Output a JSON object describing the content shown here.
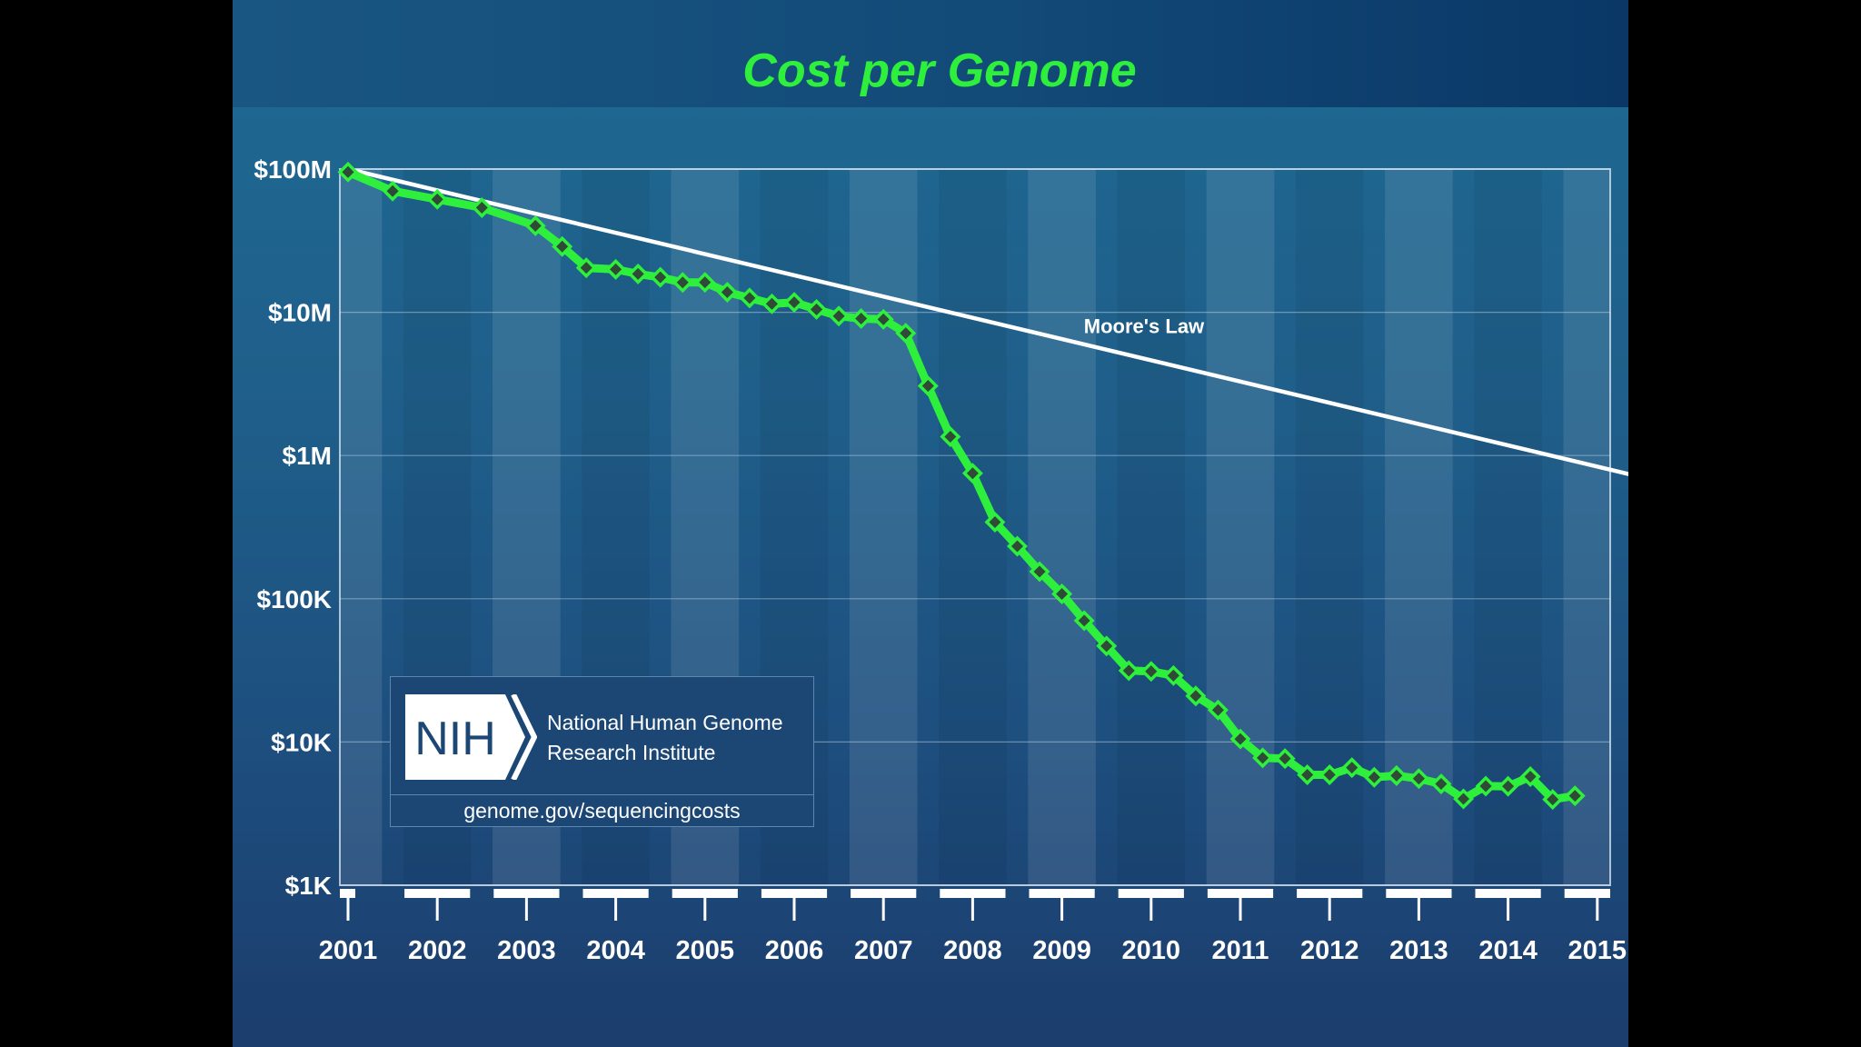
{
  "chart_data": {
    "type": "line",
    "title": "Cost per Genome",
    "xlabel": "",
    "ylabel": "",
    "y_scale": "log",
    "ylim": [
      1000,
      100000000
    ],
    "y_ticks": [
      {
        "value": 100000000,
        "label": "$100M"
      },
      {
        "value": 10000000,
        "label": "$10M"
      },
      {
        "value": 1000000,
        "label": "$1M"
      },
      {
        "value": 100000,
        "label": "$100K"
      },
      {
        "value": 10000,
        "label": "$10K"
      },
      {
        "value": 1000,
        "label": "$1K"
      }
    ],
    "x_ticks": [
      "2001",
      "2002",
      "2003",
      "2004",
      "2005",
      "2006",
      "2007",
      "2008",
      "2009",
      "2010",
      "2011",
      "2012",
      "2013",
      "2014",
      "2015"
    ],
    "grid": true,
    "series": [
      {
        "name": "Cost per Genome",
        "color": "#2ef03c",
        "marker_color": "#2f4a36",
        "points": [
          [
            2001.0,
            95263072
          ],
          [
            2001.5,
            70175437
          ],
          [
            2002.0,
            61448422
          ],
          [
            2002.5,
            53751684
          ],
          [
            2003.1,
            40157554
          ],
          [
            2003.4,
            28780376
          ],
          [
            2003.67,
            20442576
          ],
          [
            2004.0,
            19934346
          ],
          [
            2004.25,
            18519312
          ],
          [
            2004.5,
            17534970
          ],
          [
            2004.75,
            16159699
          ],
          [
            2005.0,
            16180224
          ],
          [
            2005.25,
            13801124
          ],
          [
            2005.5,
            12585659
          ],
          [
            2005.75,
            11455315
          ],
          [
            2006.0,
            11732535
          ],
          [
            2006.25,
            10474556
          ],
          [
            2006.5,
            9408739
          ],
          [
            2006.75,
            9047002
          ],
          [
            2007.0,
            8927342
          ],
          [
            2007.25,
            7147571
          ],
          [
            2007.5,
            3063820
          ],
          [
            2007.75,
            1352982
          ],
          [
            2008.0,
            752080
          ],
          [
            2008.25,
            342502
          ],
          [
            2008.5,
            232735
          ],
          [
            2008.75,
            154714
          ],
          [
            2009.0,
            108065
          ],
          [
            2009.25,
            70333
          ],
          [
            2009.5,
            46774
          ],
          [
            2009.75,
            31512
          ],
          [
            2010.0,
            31125
          ],
          [
            2010.25,
            29092
          ],
          [
            2010.5,
            20963
          ],
          [
            2010.75,
            16712
          ],
          [
            2011.0,
            10497
          ],
          [
            2011.25,
            7743
          ],
          [
            2011.5,
            7666
          ],
          [
            2011.75,
            5902
          ],
          [
            2012.0,
            5901
          ],
          [
            2012.25,
            6618
          ],
          [
            2012.5,
            5671
          ],
          [
            2012.75,
            5826
          ],
          [
            2013.0,
            5550
          ],
          [
            2013.25,
            5096
          ],
          [
            2013.5,
            4008
          ],
          [
            2013.75,
            4920
          ],
          [
            2014.0,
            4905
          ],
          [
            2014.25,
            5731
          ],
          [
            2014.5,
            3970
          ],
          [
            2014.75,
            4211
          ]
        ]
      },
      {
        "name": "Moore's Law",
        "color": "#ffffff",
        "points": [
          [
            2001.0,
            100000000
          ],
          [
            2015.4,
            730000
          ]
        ]
      }
    ],
    "annotations": [
      {
        "text": "Moore's Law",
        "x": 2010.0,
        "y": 8300000
      }
    ]
  },
  "logo": {
    "mark": "NIH",
    "name_line1": "National Human Genome",
    "name_line2": "Research Institute",
    "url": "genome.gov/sequencingcosts"
  }
}
